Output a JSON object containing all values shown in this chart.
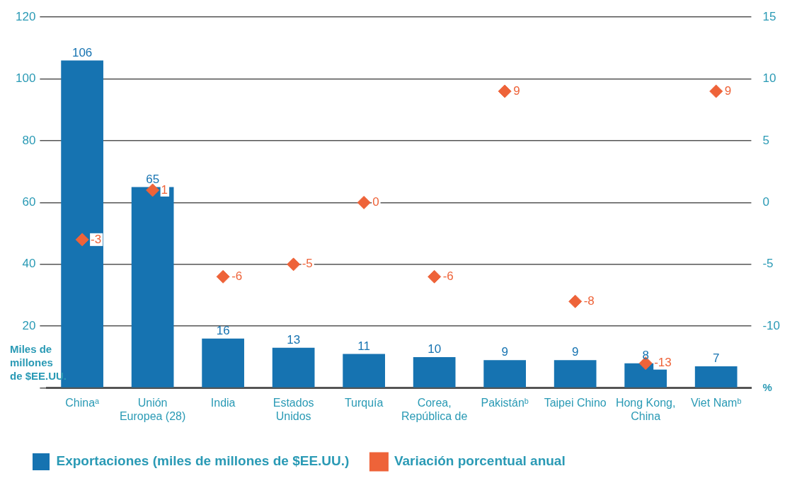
{
  "chart_data": {
    "type": "bar",
    "categories": [
      "Chinaᵃ",
      "Unión Europea (28)",
      "India",
      "Estados Unidos",
      "Turquía",
      "Corea, República de",
      "Pakistánᵇ",
      "Taipei Chino",
      "Hong Kong, China",
      "Viet Namᵇ"
    ],
    "series": [
      {
        "name": "Exportaciones (miles de millones de $EE.UU.)",
        "color": "#1673b1",
        "values": [
          106,
          65,
          16,
          13,
          11,
          10,
          9,
          9,
          8,
          7
        ]
      },
      {
        "name": "Variación porcentual anual",
        "type": "scatter",
        "axis": "y2",
        "color": "#ee6339",
        "marker": "diamond",
        "values": [
          -3,
          1,
          -6,
          -5,
          0,
          -6,
          9,
          -8,
          -13,
          9
        ]
      }
    ],
    "ylabel": "Miles de millones de $EE.UU.",
    "y2label": "%",
    "ylim": [
      0,
      120
    ],
    "yticks": [
      {
        "value": 0,
        "label": null
      },
      20,
      40,
      60,
      80,
      100,
      120
    ],
    "y2lim": [
      -15,
      15
    ],
    "y2ticks": [
      -10,
      -5,
      0,
      5,
      10,
      15
    ],
    "grid": "y",
    "legend": "bottom",
    "data_labels": true
  }
}
